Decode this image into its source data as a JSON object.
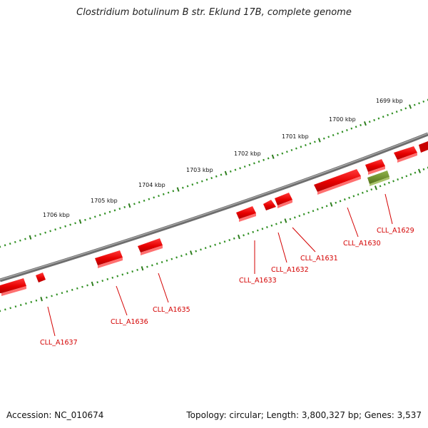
{
  "title": "Clostridium botulinum B str. Eklund 17B, complete genome",
  "footer": {
    "accession": "Accession: NC_010674",
    "topology": "Topology: circular; Length: 3,800,327 bp; Genes: 3,537"
  },
  "colors": {
    "forward_gene": "#e60000",
    "reverse_gene": "#6b8e23",
    "backbone": "#7a7a7a",
    "ticks": "#2e7d1e",
    "label": "#d40000"
  },
  "kbp_labels": [
    "1699 kbp",
    "1700 kbp",
    "1701 kbp",
    "1702 kbp",
    "1703 kbp",
    "1704 kbp",
    "1705 kbp",
    "1706 kbp"
  ],
  "genes": [
    {
      "name": "CLL_A1629",
      "strand": "-"
    },
    {
      "name": "CLL_A1630",
      "strand": "+"
    },
    {
      "name": "CLL_A1631",
      "strand": "+"
    },
    {
      "name": "CLL_A1632",
      "strand": "+"
    },
    {
      "name": "CLL_A1633",
      "strand": "+"
    },
    {
      "name": "CLL_A1635",
      "strand": "+"
    },
    {
      "name": "CLL_A1636",
      "strand": "+"
    },
    {
      "name": "CLL_A1637",
      "strand": "+"
    }
  ]
}
